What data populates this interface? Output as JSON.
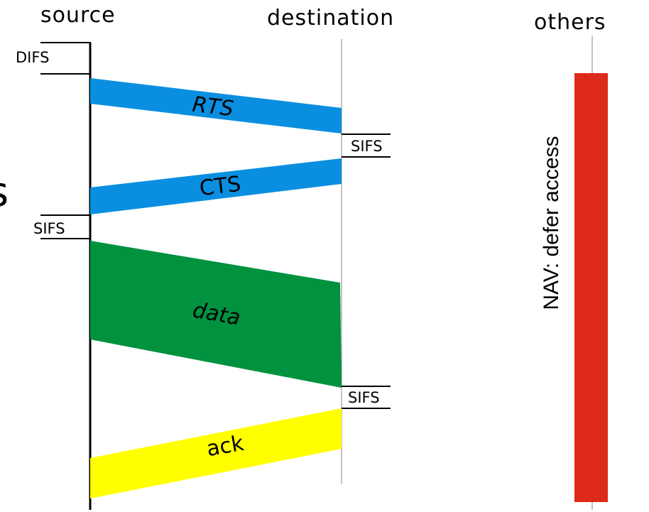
{
  "columns": {
    "source": "source",
    "destination": "destination",
    "others": "others"
  },
  "intervals": {
    "difs": "DIFS",
    "sifs_after_rts": "SIFS",
    "sifs_after_cts": "SIFS",
    "sifs_after_data": "SIFS"
  },
  "messages": {
    "rts": "RTS",
    "cts": "CTS",
    "data": "data",
    "ack": "ack"
  },
  "nav": {
    "label": "NAV: defer access"
  },
  "edge_fragment": "s",
  "colors": {
    "rts": "#0a8fe0",
    "cts": "#0a8fe0",
    "data": "#00923f",
    "ack": "#ffff00",
    "nav": "#dd2a1a",
    "timeline": "#000000",
    "thin_timeline": "#888888"
  }
}
